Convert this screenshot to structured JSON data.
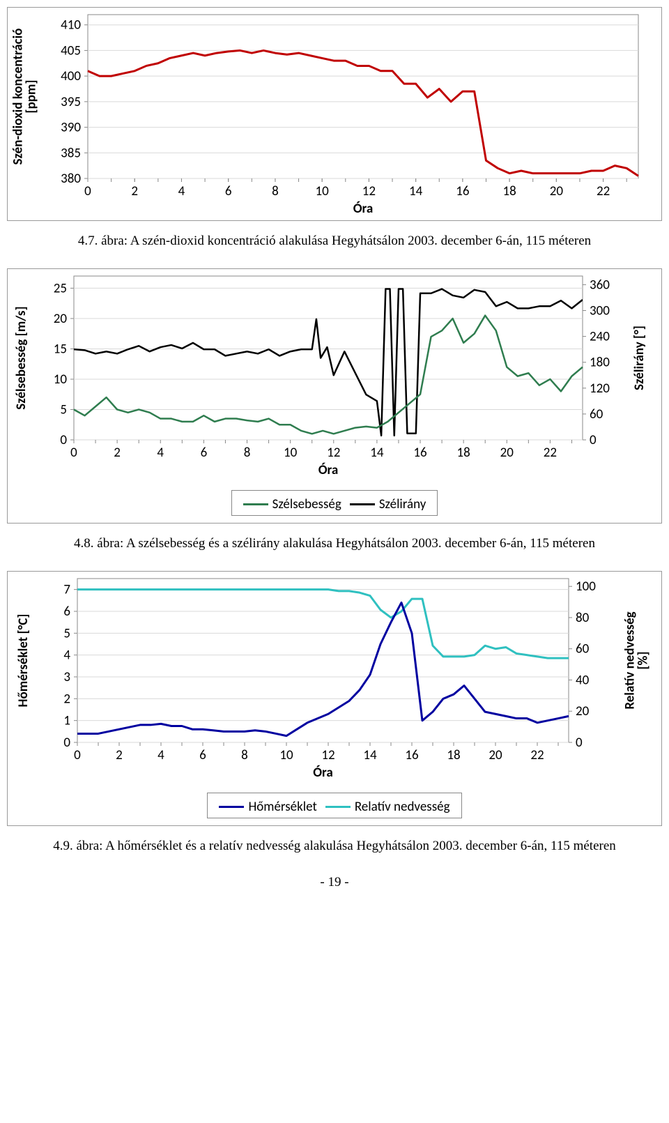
{
  "chart1": {
    "type": "line",
    "ylabel": "Szén-dioxid koncentráció\n[ppm]",
    "xlabel": "Óra",
    "label_fontsize": 19,
    "tick_fontsize": 19,
    "xlim": [
      0,
      23.5
    ],
    "ylim": [
      380,
      412
    ],
    "xticks": [
      0,
      2,
      4,
      6,
      8,
      10,
      12,
      14,
      16,
      18,
      20,
      22
    ],
    "yticks": [
      380,
      385,
      390,
      395,
      400,
      405,
      410
    ],
    "grid_color": "#d9d9d9",
    "background_color": "#ffffff",
    "line_color": "#c00000",
    "line_width": 3,
    "series": {
      "x": [
        0,
        0.5,
        1,
        1.5,
        2,
        2.5,
        3,
        3.5,
        4,
        4.5,
        5,
        5.5,
        6,
        6.5,
        7,
        7.5,
        8,
        8.5,
        9,
        9.5,
        10,
        10.5,
        11,
        11.5,
        12,
        12.5,
        13,
        13.5,
        14,
        14.5,
        15,
        15.5,
        16,
        16.5,
        17,
        17.5,
        18,
        18.5,
        19,
        19.5,
        20,
        20.5,
        21,
        21.5,
        22,
        22.5,
        23,
        23.5
      ],
      "y": [
        401,
        400,
        400,
        400.5,
        401,
        402,
        402.5,
        403.5,
        404,
        404.5,
        404,
        404.5,
        404.8,
        405,
        404.5,
        405,
        404.5,
        404.2,
        404.5,
        404,
        403.5,
        403,
        403,
        402,
        402,
        401,
        401,
        398.5,
        398.5,
        395.8,
        397.5,
        395,
        397,
        397,
        383.5,
        382,
        381,
        381.5,
        381,
        381,
        381,
        381,
        381,
        381.5,
        381.5,
        382.5,
        382,
        380.5
      ]
    }
  },
  "caption1": "4.7. ábra: A szén-dioxid koncentráció alakulása Hegyhátsálon 2003. december 6-án, 115 méteren",
  "chart2": {
    "type": "line",
    "ylabel_left": "Szélsebesség [m/s]",
    "ylabel_right": "Szélirány [°]",
    "xlabel": "Óra",
    "label_fontsize": 19,
    "tick_fontsize": 19,
    "xlim": [
      0,
      23.5
    ],
    "ylim_left": [
      0,
      27
    ],
    "ylim_right": [
      0,
      380
    ],
    "yticks_left": [
      0,
      5,
      10,
      15,
      20,
      25
    ],
    "yticks_right": [
      0,
      60,
      120,
      180,
      240,
      300,
      360
    ],
    "xticks": [
      0,
      2,
      4,
      6,
      8,
      10,
      12,
      14,
      16,
      18,
      20,
      22
    ],
    "grid_color": "#d9d9d9",
    "background_color": "#ffffff",
    "series_speed": {
      "label": "Szélsebesség",
      "color": "#2f7d4f",
      "line_width": 2.5,
      "x": [
        0,
        0.5,
        1,
        1.5,
        2,
        2.5,
        3,
        3.5,
        4,
        4.5,
        5,
        5.5,
        6,
        6.5,
        7,
        7.5,
        8,
        8.5,
        9,
        9.5,
        10,
        10.5,
        11,
        11.5,
        12,
        12.5,
        13,
        13.5,
        14,
        14.5,
        15,
        15.5,
        16,
        16.5,
        17,
        17.5,
        18,
        18.5,
        19,
        19.5,
        20,
        20.5,
        21,
        21.5,
        22,
        22.5,
        23,
        23.5
      ],
      "y": [
        5,
        4,
        5.5,
        7,
        5,
        4.5,
        5,
        4.5,
        3.5,
        3.5,
        3,
        3,
        4,
        3,
        3.5,
        3.5,
        3.2,
        3,
        3.5,
        2.5,
        2.5,
        1.5,
        1,
        1.5,
        1,
        1.5,
        2,
        2.2,
        2,
        3,
        4.5,
        6,
        7.5,
        17,
        18,
        20,
        16,
        17.5,
        20.5,
        18,
        12,
        10.5,
        11,
        9,
        10,
        8,
        10.5,
        12
      ]
    },
    "series_dir": {
      "label": "Szélirány",
      "color": "#000000",
      "line_width": 2.5,
      "x": [
        0,
        0.5,
        1,
        1.5,
        2,
        2.5,
        3,
        3.5,
        4,
        4.5,
        5,
        5.5,
        6,
        6.5,
        7,
        7.5,
        8,
        8.5,
        9,
        9.5,
        10,
        10.5,
        11,
        11.2,
        11.4,
        11.7,
        12,
        12.5,
        13,
        13.5,
        14,
        14.2,
        14.4,
        14.6,
        14.8,
        15,
        15.2,
        15.4,
        15.6,
        15.8,
        16,
        16.5,
        17,
        17.5,
        18,
        18.5,
        19,
        19.5,
        20,
        20.5,
        21,
        21.5,
        22,
        22.5,
        23,
        23.5
      ],
      "y": [
        210,
        208,
        200,
        205,
        200,
        210,
        218,
        205,
        215,
        220,
        212,
        225,
        210,
        210,
        195,
        200,
        205,
        200,
        210,
        195,
        205,
        210,
        210,
        280,
        190,
        215,
        150,
        205,
        155,
        105,
        90,
        10,
        350,
        350,
        10,
        350,
        350,
        15,
        15,
        15,
        340,
        340,
        350,
        335,
        330,
        348,
        343,
        310,
        320,
        305,
        305,
        310,
        310,
        323,
        305,
        325
      ]
    }
  },
  "legend2": {
    "items": [
      {
        "label": "Szélsebesség",
        "color": "#2f7d4f"
      },
      {
        "label": "Szélirány",
        "color": "#000000"
      }
    ]
  },
  "caption2": "4.8. ábra: A szélsebesség és a szélirány alakulása Hegyhátsálon 2003. december 6-án, 115 méteren",
  "chart3": {
    "type": "line",
    "ylabel_left": "Hőmérséklet [°C]",
    "ylabel_right": "Relatív nedvesség\n[%]",
    "xlabel": "Óra",
    "label_fontsize": 19,
    "tick_fontsize": 19,
    "xlim": [
      0,
      23.5
    ],
    "ylim_left": [
      0,
      7.5
    ],
    "ylim_right": [
      0,
      105
    ],
    "yticks_left": [
      0,
      1,
      2,
      3,
      4,
      5,
      6,
      7
    ],
    "yticks_right": [
      0,
      20,
      40,
      60,
      80,
      100
    ],
    "xticks": [
      0,
      2,
      4,
      6,
      8,
      10,
      12,
      14,
      16,
      18,
      20,
      22
    ],
    "grid_color": "#d9d9d9",
    "background_color": "#ffffff",
    "series_temp": {
      "label": "Hőmérséklet",
      "color": "#0000a0",
      "line_width": 3,
      "x": [
        0,
        0.5,
        1,
        1.5,
        2,
        2.5,
        3,
        3.5,
        4,
        4.5,
        5,
        5.5,
        6,
        6.5,
        7,
        7.5,
        8,
        8.5,
        9,
        9.5,
        10,
        10.5,
        11,
        11.5,
        12,
        12.5,
        13,
        13.5,
        14,
        14.5,
        15,
        15.5,
        16,
        16.5,
        17,
        17.5,
        18,
        18.5,
        19,
        19.5,
        20,
        20.5,
        21,
        21.5,
        22,
        22.5,
        23,
        23.5
      ],
      "y": [
        0.4,
        0.4,
        0.4,
        0.5,
        0.6,
        0.7,
        0.8,
        0.8,
        0.85,
        0.75,
        0.75,
        0.6,
        0.6,
        0.55,
        0.5,
        0.5,
        0.5,
        0.55,
        0.5,
        0.4,
        0.3,
        0.6,
        0.9,
        1.1,
        1.3,
        1.6,
        1.9,
        2.4,
        3.1,
        4.5,
        5.5,
        6.4,
        5.0,
        1.0,
        1.4,
        2.0,
        2.2,
        2.6,
        2.0,
        1.4,
        1.3,
        1.2,
        1.1,
        1.1,
        0.9,
        1.0,
        1.1,
        1.2
      ]
    },
    "series_rh": {
      "label": "Relatív nedvesség",
      "color": "#2fc0c0",
      "line_width": 3,
      "x": [
        0,
        0.5,
        1,
        1.5,
        2,
        2.5,
        3,
        3.5,
        4,
        4.5,
        5,
        5.5,
        6,
        6.5,
        7,
        7.5,
        8,
        8.5,
        9,
        9.5,
        10,
        10.5,
        11,
        11.5,
        12,
        12.5,
        13,
        13.5,
        14,
        14.5,
        15,
        15.5,
        16,
        16.5,
        17,
        17.5,
        18,
        18.5,
        19,
        19.5,
        20,
        20.5,
        21,
        21.5,
        22,
        22.5,
        23,
        23.5
      ],
      "y": [
        98,
        98,
        98,
        98,
        98,
        98,
        98,
        98,
        98,
        98,
        98,
        98,
        98,
        98,
        98,
        98,
        98,
        98,
        98,
        98,
        98,
        98,
        98,
        98,
        98,
        97,
        97,
        96,
        94,
        85,
        80,
        84,
        92,
        92,
        62,
        55,
        55,
        55,
        56,
        62,
        60,
        61,
        57,
        56,
        55,
        54,
        54,
        54
      ]
    }
  },
  "legend3": {
    "items": [
      {
        "label": "Hőmérséklet",
        "color": "#0000a0"
      },
      {
        "label": "Relatív nedvesség",
        "color": "#2fc0c0"
      }
    ]
  },
  "caption3": "4.9. ábra: A hőmérséklet és a relatív nedvesség alakulása Hegyhátsálon 2003. december 6-án, 115 méteren",
  "page_number": "- 19 -"
}
